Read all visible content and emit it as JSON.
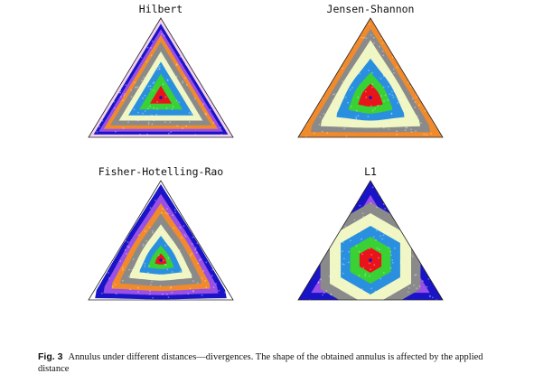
{
  "panels": [
    {
      "title": "Hilbert",
      "shape": "hilbert"
    },
    {
      "title": "Jensen-Shannon",
      "shape": "js"
    },
    {
      "title": "Fisher-Hotelling-Rao",
      "shape": "fhr"
    },
    {
      "title": "L1",
      "shape": "l1"
    }
  ],
  "ring_colors": [
    "#e8141a",
    "#39d134",
    "#2b8fe0",
    "#f0f7c4",
    "#8a8a8a",
    "#f08a2c",
    "#9a4fe6",
    "#1a14c8"
  ],
  "caption": {
    "label": "Fig. 3",
    "text": "Annulus under different distances—divergences. The shape of the obtained annulus is affected by the applied distance"
  }
}
